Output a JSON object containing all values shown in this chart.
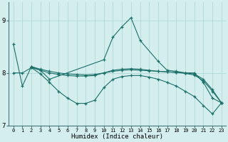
{
  "xlabel": "Humidex (Indice chaleur)",
  "xlim": [
    -0.5,
    23.5
  ],
  "ylim": [
    7.0,
    9.35
  ],
  "yticks": [
    7,
    8,
    9
  ],
  "xticks": [
    0,
    1,
    2,
    3,
    4,
    5,
    6,
    7,
    8,
    9,
    10,
    11,
    12,
    13,
    14,
    15,
    16,
    17,
    18,
    19,
    20,
    21,
    22,
    23
  ],
  "background_color": "#d4eeee",
  "line_color": "#1a7068",
  "grid_color": "#b0d8d8",
  "lines": [
    {
      "x": [
        0,
        1,
        2,
        3,
        4,
        10,
        11,
        12,
        13,
        14,
        16,
        17,
        18,
        19,
        20,
        21,
        22,
        23
      ],
      "y": [
        8.55,
        7.75,
        8.12,
        8.05,
        7.88,
        8.25,
        8.68,
        8.88,
        9.05,
        8.62,
        8.22,
        8.05,
        8.03,
        8.0,
        8.0,
        7.82,
        7.52,
        7.43
      ]
    },
    {
      "x": [
        2,
        3,
        4,
        5,
        6,
        7,
        8,
        9,
        10,
        11,
        12,
        13,
        14,
        15,
        16,
        17,
        18,
        19,
        20,
        21,
        22,
        23
      ],
      "y": [
        8.12,
        8.07,
        8.03,
        8.0,
        7.98,
        7.97,
        7.96,
        7.97,
        8.0,
        8.05,
        8.07,
        8.08,
        8.07,
        8.05,
        8.03,
        8.02,
        8.01,
        8.0,
        7.98,
        7.88,
        7.68,
        7.43
      ]
    },
    {
      "x": [
        0,
        1,
        2,
        3,
        4,
        5,
        6,
        7,
        8,
        9,
        10,
        11,
        12,
        13,
        14,
        15,
        16,
        17,
        18,
        19,
        20,
        21,
        22,
        23
      ],
      "y": [
        8.0,
        8.0,
        8.1,
        8.05,
        8.0,
        7.97,
        7.95,
        7.94,
        7.94,
        7.95,
        8.0,
        8.03,
        8.05,
        8.06,
        8.05,
        8.04,
        8.03,
        8.02,
        8.01,
        7.99,
        7.96,
        7.85,
        7.65,
        7.43
      ]
    },
    {
      "x": [
        2,
        3,
        4,
        5,
        6,
        7,
        8,
        9,
        10,
        11,
        12,
        13,
        14,
        15,
        16,
        17,
        18,
        19,
        20,
        21,
        22,
        23
      ],
      "y": [
        8.1,
        7.98,
        7.82,
        7.65,
        7.52,
        7.42,
        7.42,
        7.48,
        7.72,
        7.88,
        7.93,
        7.95,
        7.95,
        7.92,
        7.88,
        7.82,
        7.75,
        7.65,
        7.55,
        7.38,
        7.22,
        7.43
      ]
    }
  ]
}
